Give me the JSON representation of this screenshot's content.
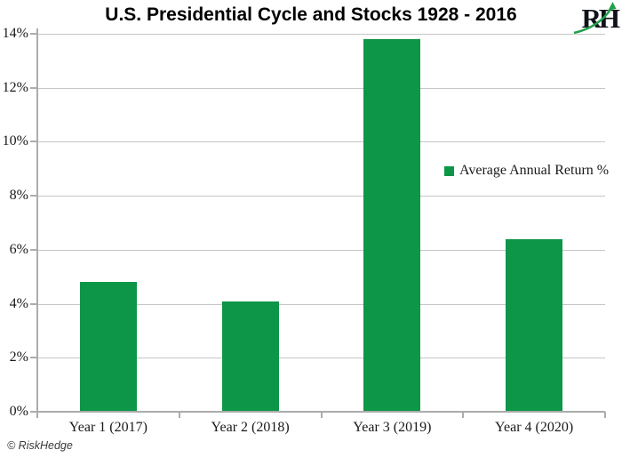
{
  "title": "U.S. Presidential Cycle and Stocks 1928 - 2016",
  "logo": {
    "text": "RH"
  },
  "legend": {
    "label": "Average Annual Return %"
  },
  "footer": {
    "credit": "© RiskHedge"
  },
  "colors": {
    "bar": "#0D9648",
    "grid": "#C6C6C6",
    "axis": "#ACACAC",
    "label": "#1A1A1A",
    "title": "#000000",
    "credit": "#3A3A3A",
    "logo_text": "#10131A",
    "logo_arrow": "#21A04B"
  },
  "chart_data": {
    "type": "bar",
    "title": "U.S. Presidential Cycle and Stocks 1928 - 2016",
    "categories": [
      "Year 1 (2017)",
      "Year 2 (2018)",
      "Year 3 (2019)",
      "Year 4 (2020)"
    ],
    "series": [
      {
        "name": "Average Annual Return %",
        "values": [
          4.8,
          4.1,
          13.8,
          6.4
        ]
      }
    ],
    "xlabel": "",
    "ylabel": "",
    "ylim": [
      0,
      14
    ],
    "ytick_step": 2,
    "ytick_labels": [
      "0%",
      "2%",
      "4%",
      "6%",
      "8%",
      "10%",
      "12%",
      "14%"
    ],
    "grid": true,
    "legend_position": "middle-right"
  }
}
